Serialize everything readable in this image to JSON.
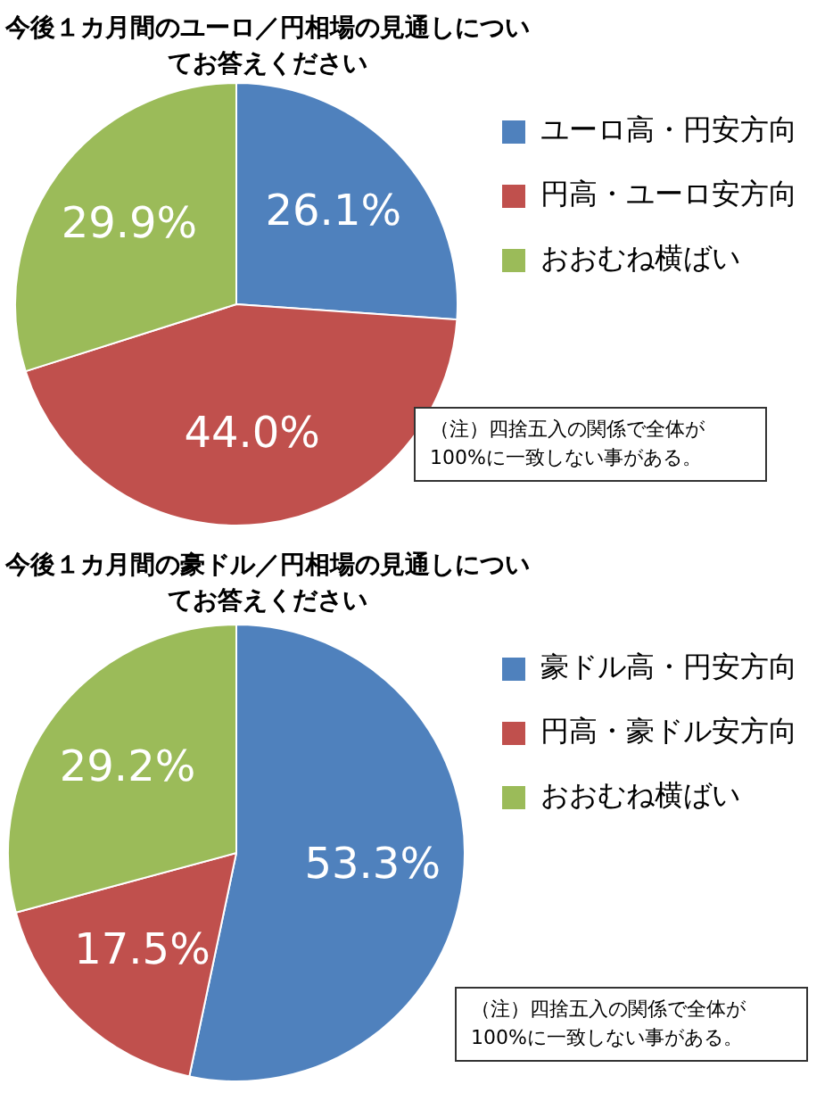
{
  "chart_data": [
    {
      "type": "pie",
      "title": "今後１カ月間のユーロ／円相場の見通しについてお答えください",
      "categories": [
        "ユーロ高・円安方向",
        "円高・ユーロ安方向",
        "おおむね横ばい"
      ],
      "values": [
        26.1,
        44.0,
        29.9
      ],
      "value_labels": [
        "26.1%",
        "44.0%",
        "29.9%"
      ],
      "colors": [
        "#4f81bd",
        "#c0504d",
        "#9bbb59"
      ],
      "legend": "right",
      "annotations": [
        "（注）四捨五入の関係で全体が100%に一致しない事がある。"
      ]
    },
    {
      "type": "pie",
      "title": "今後１カ月間の豪ドル／円相場の見通しについてお答えください",
      "categories": [
        "豪ドル高・円安方向",
        "円高・豪ドル安方向",
        "おおむね横ばい"
      ],
      "values": [
        53.3,
        17.5,
        29.2
      ],
      "value_labels": [
        "53.3%",
        "17.5%",
        "29.2%"
      ],
      "colors": [
        "#4f81bd",
        "#c0504d",
        "#9bbb59"
      ],
      "legend": "right",
      "annotations": [
        "（注）四捨五入の関係で全体が100%に一致しない事がある。"
      ]
    }
  ]
}
